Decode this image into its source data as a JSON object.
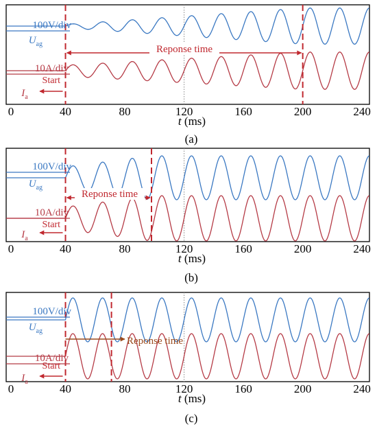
{
  "chart_data": [
    {
      "type": "line",
      "panel_label": "(a)",
      "xlabel_var": "t",
      "xlabel_unit": "(ms)",
      "xlim": [
        0,
        245
      ],
      "xticks": [
        "0",
        "40",
        "80",
        "120",
        "160",
        "200",
        "240"
      ],
      "start_label": "Start",
      "start_ms": 40,
      "response_label": "Reponse time",
      "response_end_ms": 200,
      "voltage": {
        "scale_label": "100V/div",
        "symbol": "U",
        "subscript": "ag",
        "color": "#3a78c2",
        "period_ms": 20,
        "amp_start_div": 0.08,
        "amp_end_div": 0.85,
        "end_ms": 200
      },
      "current": {
        "scale_label": "10A/div",
        "symbol": "I",
        "subscript": "a",
        "color": "#b53a45",
        "period_ms": 20,
        "amp_start_div": 0.25,
        "amp_end_div": 0.85,
        "end_ms": 200
      }
    },
    {
      "type": "line",
      "panel_label": "(b)",
      "xlabel_var": "t",
      "xlabel_unit": "(ms)",
      "xlim": [
        0,
        245
      ],
      "xticks": [
        "0",
        "40",
        "80",
        "120",
        "160",
        "200",
        "240"
      ],
      "start_label": "Start",
      "start_ms": 40,
      "response_label": "Reponse time",
      "response_end_ms": 98,
      "voltage": {
        "scale_label": "100V/div",
        "symbol": "U",
        "subscript": "ag",
        "color": "#3a78c2",
        "period_ms": 20,
        "amp_start_div": 0.5,
        "amp_end_div": 1.0,
        "end_ms": 98
      },
      "current": {
        "scale_label": "10A/div",
        "symbol": "I",
        "subscript": "a",
        "color": "#b53a45",
        "period_ms": 20,
        "amp_start_div": 0.5,
        "amp_end_div": 1.0,
        "end_ms": 98
      }
    },
    {
      "type": "line",
      "panel_label": "(c)",
      "xlabel_var": "t",
      "xlabel_unit": "(ms)",
      "xlim": [
        0,
        245
      ],
      "xticks": [
        "0",
        "40",
        "80",
        "120",
        "160",
        "200",
        "240"
      ],
      "start_label": "Start",
      "start_ms": 40,
      "response_label": "Reponse time",
      "response_end_ms": 71,
      "voltage": {
        "scale_label": "100V/div",
        "symbol": "U",
        "subscript": "ag",
        "color": "#3a78c2",
        "period_ms": 20,
        "amp_start_div": 1.0,
        "amp_end_div": 1.0,
        "end_ms": 42
      },
      "current": {
        "scale_label": "10A/div",
        "symbol": "I",
        "subscript": "a",
        "color": "#b53a45",
        "period_ms": 20,
        "amp_start_div": 1.0,
        "amp_end_div": 1.0,
        "end_ms": 42
      }
    }
  ]
}
